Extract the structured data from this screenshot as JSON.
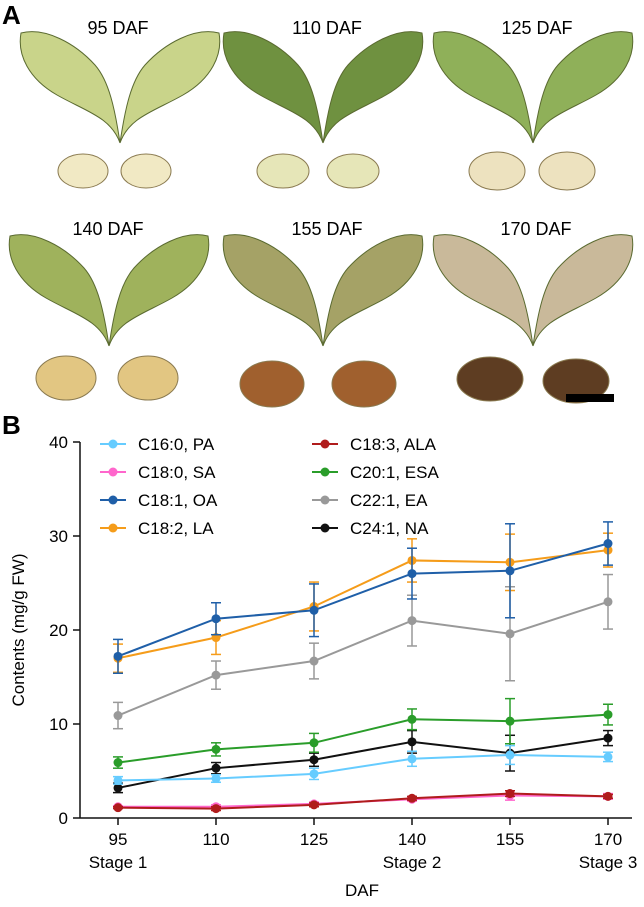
{
  "panel_a": {
    "letter": "A",
    "labels": [
      "95 DAF",
      "110 DAF",
      "125 DAF",
      "140 DAF",
      "155 DAF",
      "170 DAF"
    ],
    "wing_colors": [
      "#c9d48a",
      "#6f9140",
      "#8fb059",
      "#9fb25c",
      "#a5a266",
      "#c9b99a"
    ],
    "seed_colors": [
      "#f1e9c4",
      "#e6e6b8",
      "#ede2bf",
      "#e2c682",
      "#a0602e",
      "#5e3d22"
    ],
    "scale_bar_color": "#000000"
  },
  "panel_b": {
    "letter": "B"
  },
  "chart_data": {
    "type": "line",
    "xlabel": "DAF",
    "ylabel": "Contents (mg/g FW)",
    "x": [
      95,
      110,
      125,
      140,
      155,
      170
    ],
    "xticks": [
      "95",
      "110",
      "125",
      "140",
      "155",
      "170"
    ],
    "yticks": [
      "0",
      "10",
      "20",
      "30",
      "40"
    ],
    "ylim": [
      0,
      40
    ],
    "stage_labels": [
      {
        "text": "Stage 1",
        "x": 95
      },
      {
        "text": "Stage 2",
        "x": 140
      },
      {
        "text": "Stage 3",
        "x": 170
      }
    ],
    "legend_placement": "top-left",
    "series": [
      {
        "name": "C16:0, PA",
        "color": "#66ccff",
        "values": [
          4.0,
          4.2,
          4.7,
          6.3,
          6.7,
          6.5
        ],
        "errors": [
          0.4,
          0.4,
          0.6,
          0.8,
          1.0,
          0.5
        ]
      },
      {
        "name": "C18:0, SA",
        "color": "#ff66cc",
        "values": [
          1.2,
          1.2,
          1.5,
          2.0,
          2.4,
          2.3
        ],
        "errors": [
          0.1,
          0.2,
          0.2,
          0.2,
          0.5,
          0.3
        ]
      },
      {
        "name": "C18:1, OA",
        "color": "#1f5fa8",
        "values": [
          17.2,
          21.2,
          22.1,
          26.0,
          26.3,
          29.2
        ],
        "errors": [
          1.8,
          1.7,
          2.8,
          2.7,
          5.0,
          2.3
        ]
      },
      {
        "name": "C18:2, LA",
        "color": "#f59c1a",
        "values": [
          17.0,
          19.2,
          22.5,
          27.4,
          27.2,
          28.5
        ],
        "errors": [
          1.5,
          1.8,
          2.6,
          2.3,
          3.0,
          1.8
        ]
      },
      {
        "name": "C18:3, ALA",
        "color": "#b01c1c",
        "values": [
          1.1,
          1.0,
          1.4,
          2.1,
          2.6,
          2.3
        ],
        "errors": [
          0.1,
          0.2,
          0.2,
          0.2,
          0.3,
          0.2
        ]
      },
      {
        "name": "C20:1, ESA",
        "color": "#2a9d2a",
        "values": [
          5.9,
          7.3,
          8.0,
          10.5,
          10.3,
          11.0
        ],
        "errors": [
          0.6,
          0.7,
          1.0,
          1.1,
          2.4,
          1.1
        ]
      },
      {
        "name": "C22:1, EA",
        "color": "#999999",
        "values": [
          10.9,
          15.2,
          16.7,
          21.0,
          19.6,
          23.0
        ],
        "errors": [
          1.4,
          1.5,
          1.9,
          2.7,
          5.0,
          2.9
        ]
      },
      {
        "name": "C24:1, NA",
        "color": "#111111",
        "values": [
          3.2,
          5.3,
          6.2,
          8.1,
          6.9,
          8.5
        ],
        "errors": [
          0.5,
          0.6,
          0.7,
          1.2,
          1.9,
          0.8
        ]
      }
    ]
  }
}
